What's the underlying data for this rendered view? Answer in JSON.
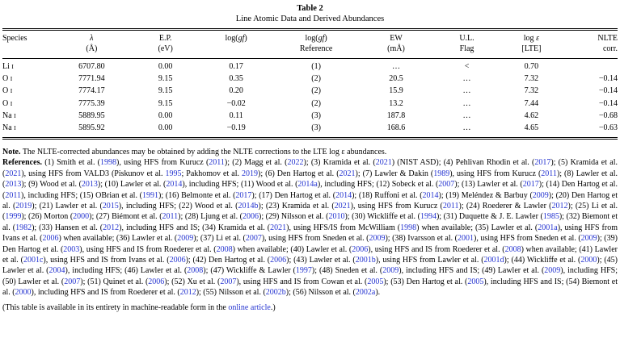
{
  "colors": {
    "link": "#2433d0",
    "text": "#000000",
    "rule": "#000000"
  },
  "caption": {
    "label": "Table 2",
    "title": "Line Atomic Data and Derived Abundances"
  },
  "table": {
    "columns": [
      {
        "name": "species",
        "align": "left",
        "line1": [
          {
            "text": "Species"
          }
        ],
        "line2": []
      },
      {
        "name": "wavelength",
        "align": "center",
        "line1": [
          {
            "text": "λ",
            "italic": true
          }
        ],
        "line2": [
          {
            "text": "(Å)"
          }
        ]
      },
      {
        "name": "excitation-potential",
        "align": "center",
        "line1": [
          {
            "text": "E.P."
          }
        ],
        "line2": [
          {
            "text": "(eV)"
          }
        ]
      },
      {
        "name": "loggf",
        "align": "center",
        "line1": [
          {
            "text": "log("
          },
          {
            "text": "gf",
            "italic": true
          },
          {
            "text": ")"
          }
        ],
        "line2": []
      },
      {
        "name": "loggf-reference",
        "align": "center",
        "line1": [
          {
            "text": "log("
          },
          {
            "text": "gf",
            "italic": true
          },
          {
            "text": ")"
          }
        ],
        "line2": [
          {
            "text": "Reference"
          }
        ]
      },
      {
        "name": "equivalent-width",
        "align": "center",
        "line1": [
          {
            "text": "EW"
          }
        ],
        "line2": [
          {
            "text": "(mÅ)"
          }
        ]
      },
      {
        "name": "upper-limit-flag",
        "align": "center",
        "line1": [
          {
            "text": "U.L."
          }
        ],
        "line2": [
          {
            "text": "Flag"
          }
        ]
      },
      {
        "name": "logeps-lte",
        "align": "center",
        "line1": [
          {
            "text": "log "
          },
          {
            "text": "ε",
            "italic": true
          }
        ],
        "line2": [
          {
            "text": "[LTE]"
          }
        ]
      },
      {
        "name": "nlte-corr",
        "align": "right",
        "line1": [
          {
            "text": "NLTE"
          }
        ],
        "line2": [
          {
            "text": "corr."
          }
        ]
      }
    ],
    "rows": [
      {
        "species_el": "Li",
        "species_ion": "I",
        "lambda": "6707.80",
        "ep": "0.00",
        "loggf": "0.17",
        "ref": "(1)",
        "ew": "…",
        "ul": "<",
        "logeps": "0.70",
        "nlte": ""
      },
      {
        "species_el": "O",
        "species_ion": "I",
        "lambda": "7771.94",
        "ep": "9.15",
        "loggf": "0.35",
        "ref": "(2)",
        "ew": "20.5",
        "ul": "…",
        "logeps": "7.32",
        "nlte": "−0.14"
      },
      {
        "species_el": "O",
        "species_ion": "I",
        "lambda": "7774.17",
        "ep": "9.15",
        "loggf": "0.20",
        "ref": "(2)",
        "ew": "15.9",
        "ul": "…",
        "logeps": "7.32",
        "nlte": "−0.14"
      },
      {
        "species_el": "O",
        "species_ion": "I",
        "lambda": "7775.39",
        "ep": "9.15",
        "loggf": "−0.02",
        "ref": "(2)",
        "ew": "13.2",
        "ul": "…",
        "logeps": "7.44",
        "nlte": "−0.14"
      },
      {
        "species_el": "Na",
        "species_ion": "I",
        "lambda": "5889.95",
        "ep": "0.00",
        "loggf": "0.11",
        "ref": "(3)",
        "ew": "187.8",
        "ul": "…",
        "logeps": "4.62",
        "nlte": "−0.68"
      },
      {
        "species_el": "Na",
        "species_ion": "I",
        "lambda": "5895.92",
        "ep": "0.00",
        "loggf": "−0.19",
        "ref": "(3)",
        "ew": "168.6",
        "ul": "…",
        "logeps": "4.65",
        "nlte": "−0.63"
      }
    ]
  },
  "note": {
    "label": "Note.",
    "text": "The NLTE-corrected abundances may be obtained by adding the NLTE corrections to the LTE log ε abundances."
  },
  "references": {
    "label": "References.",
    "text": "(1) Smith et al. (1998), using HFS from Kurucz (2011); (2) Magg et al. (2022); (3) Kramida et al. (2021) (NIST ASD); (4) Pehlivan Rhodin et al. (2017); (5) Kramida et al. (2021), using HFS from VALD3 (Piskunov et al. 1995; Pakhomov et al. 2019); (6) Den Hartog et al. (2021); (7) Lawler & Dakin (1989), using HFS from Kurucz (2011); (8) Lawler et al. (2013); (9) Wood et al. (2013); (10) Lawler et al. (2014), including HFS; (11) Wood et al. (2014a), including HFS; (12) Sobeck et al. (2007); (13) Lawler et al. (2017); (14) Den Hartog et al. (2011), including HFS; (15) OBrian et al. (1991); (16) Belmonte et al. (2017); (17) Den Hartog et al. (2014); (18) Ruffoni et al. (2014); (19) Meléndez & Barbuy (2009); (20) Den Hartog et al. (2019); (21) Lawler et al. (2015), including HFS; (22) Wood et al. (2014b); (23) Kramida et al. (2021), using HFS from Kurucz (2011); (24) Roederer & Lawler (2012); (25) Li et al. (1999); (26) Morton (2000); (27) Biémont et al. (2011); (28) Ljung et al. (2006); (29) Nilsson et al. (2010); (30) Wickliffe et al. (1994); (31) Duquette & J. E. Lawler (1985); (32) Biemont et al. (1982); (33) Hansen et al. (2012), including HFS and IS; (34) Kramida et al. (2021), using HFS/IS from McWilliam (1998) when available; (35) Lawler et al. (2001a), using HFS from Ivans et al. (2006) when available; (36) Lawler et al. (2009); (37) Li et al. (2007), using HFS from Sneden et al. (2009); (38) Ivarsson et al. (2001), using HFS from Sneden et al. (2009); (39) Den Hartog et al. (2003), using HFS and IS from Roederer et al. (2008) when available; (40) Lawler et al. (2006), using HFS and IS from Roederer et al. (2008) when available; (41) Lawler et al. (2001c), using HFS and IS from Ivans et al. (2006); (42) Den Hartog et al. (2006); (43) Lawler et al. (2001b), using HFS from Lawler et al. (2001d); (44) Wickliffe et al. (2000); (45) Lawler et al. (2004), including HFS; (46) Lawler et al. (2008); (47) Wickliffe & Lawler (1997); (48) Sneden et al. (2009), including HFS and IS; (49) Lawler et al. (2009), including HFS; (50) Lawler et al. (2007); (51) Quinet et al. (2006); (52) Xu et al. (2007), using HFS and IS from Cowan et al. (2005); (53) Den Hartog et al. (2005), including HFS and IS; (54) Biemont et al. (2000), including HFS and IS from Roederer et al. (2012); (55) Nilsson et al. (2002b); (56) Nilsson et al. (2002a)."
  },
  "availability": {
    "pre": "(This table is available in its entirety in machine-readable form in the ",
    "link": "online article",
    "post": ".)"
  }
}
